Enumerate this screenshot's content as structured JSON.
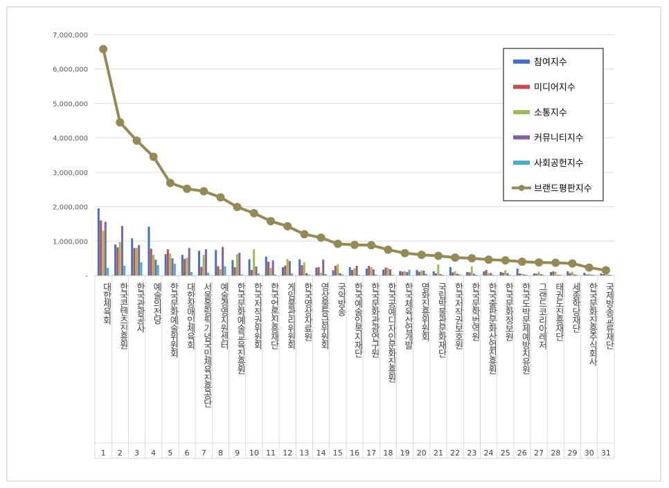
{
  "colors": {
    "참여지수": "#4472c4",
    "미디어지수": "#c0504d",
    "소통지수": "#9bbb59",
    "커뮤니티지수": "#8064a2",
    "사회공헌지수": "#4bacc6",
    "브랜드평판지수": "#948a54"
  },
  "chart_data": {
    "type": "bar",
    "title": "",
    "xlabel": "",
    "ylabel": "",
    "ylim": [
      0,
      7000000
    ],
    "yticks": [
      "-",
      "1,000,000",
      "2,000,000",
      "3,000,000",
      "4,000,000",
      "5,000,000",
      "6,000,000",
      "7,000,000"
    ],
    "grid": true,
    "legend_position": "top-right",
    "categories": [
      "대한체육회",
      "한국콘텐츠진흥원",
      "한국관광공사",
      "예술의전당",
      "한국문화예술위원회",
      "대한장애인체육회",
      "서울올림픽기념국민체육진흥공단",
      "예술경영지원센터",
      "한국문화예술교육진흥원",
      "한국저작권위원회",
      "한국언론진흥재단",
      "게임물관리위원회",
      "한국영상자료원",
      "영상물등급위원회",
      "국악방송",
      "한국예술인복지재단",
      "한국문화관광연구원",
      "한국공예디자인문화진흥원",
      "한국체육산업개발",
      "영화진흥위원회",
      "국립박물관문화재단",
      "한국저작권보호원",
      "한국문학번역원",
      "한국출판문화산업진흥원",
      "한국문화정보원",
      "한국도박문제예방치유원",
      "그랜드코리아레저",
      "태권도진흥재단",
      "세종학당재단",
      "한국문화진흥주식회사",
      "국제방송교류재단"
    ],
    "ranks": [
      "1",
      "2",
      "3",
      "4",
      "5",
      "6",
      "7",
      "8",
      "9",
      "10",
      "11",
      "12",
      "13",
      "14",
      "15",
      "16",
      "17",
      "18",
      "19",
      "20",
      "21",
      "22",
      "23",
      "24",
      "25",
      "26",
      "27",
      "28",
      "29",
      "30",
      "31"
    ],
    "series": [
      {
        "name": "참여지수",
        "type": "bar",
        "values": [
          1950000,
          900000,
          1080000,
          1420000,
          620000,
          600000,
          720000,
          740000,
          450000,
          470000,
          550000,
          240000,
          470000,
          230000,
          150000,
          240000,
          200000,
          170000,
          130000,
          160000,
          120000,
          240000,
          100000,
          120000,
          100000,
          200000,
          60000,
          100000,
          120000,
          80000,
          60000
        ]
      },
      {
        "name": "미디어지수",
        "type": "bar",
        "values": [
          1600000,
          820000,
          800000,
          780000,
          760000,
          480000,
          250000,
          270000,
          240000,
          160000,
          400000,
          290000,
          300000,
          240000,
          280000,
          160000,
          280000,
          230000,
          110000,
          110000,
          60000,
          90000,
          90000,
          160000,
          80000,
          60000,
          50000,
          120000,
          70000,
          30000,
          40000
        ]
      },
      {
        "name": "소통지수",
        "type": "bar",
        "values": [
          1300000,
          970000,
          800000,
          600000,
          640000,
          520000,
          600000,
          180000,
          620000,
          760000,
          220000,
          480000,
          380000,
          80000,
          330000,
          210000,
          240000,
          220000,
          130000,
          150000,
          320000,
          130000,
          260000,
          70000,
          150000,
          50000,
          110000,
          110000,
          110000,
          50000,
          50000
        ]
      },
      {
        "name": "커뮤니티지수",
        "type": "bar",
        "values": [
          1560000,
          1440000,
          880000,
          460000,
          500000,
          800000,
          760000,
          830000,
          660000,
          260000,
          440000,
          420000,
          70000,
          460000,
          70000,
          280000,
          180000,
          180000,
          100000,
          140000,
          40000,
          50000,
          50000,
          70000,
          70000,
          30000,
          40000,
          20000,
          30000,
          20000,
          20000
        ]
      },
      {
        "name": "사회공헌지수",
        "type": "bar",
        "values": [
          220000,
          280000,
          380000,
          300000,
          340000,
          100000,
          80000,
          270000,
          30000,
          60000,
          30000,
          60000,
          30000,
          40000,
          30000,
          20000,
          30000,
          20000,
          170000,
          50000,
          20000,
          30000,
          20000,
          20000,
          20000,
          20000,
          20000,
          20000,
          20000,
          20000,
          20000
        ]
      },
      {
        "name": "브랜드평판지수",
        "type": "line",
        "values": [
          6580000,
          4450000,
          3920000,
          3450000,
          2690000,
          2520000,
          2450000,
          2270000,
          1990000,
          1810000,
          1580000,
          1430000,
          1200000,
          1100000,
          920000,
          890000,
          880000,
          750000,
          650000,
          600000,
          570000,
          520000,
          500000,
          460000,
          440000,
          400000,
          380000,
          370000,
          350000,
          230000,
          150000
        ]
      }
    ]
  }
}
